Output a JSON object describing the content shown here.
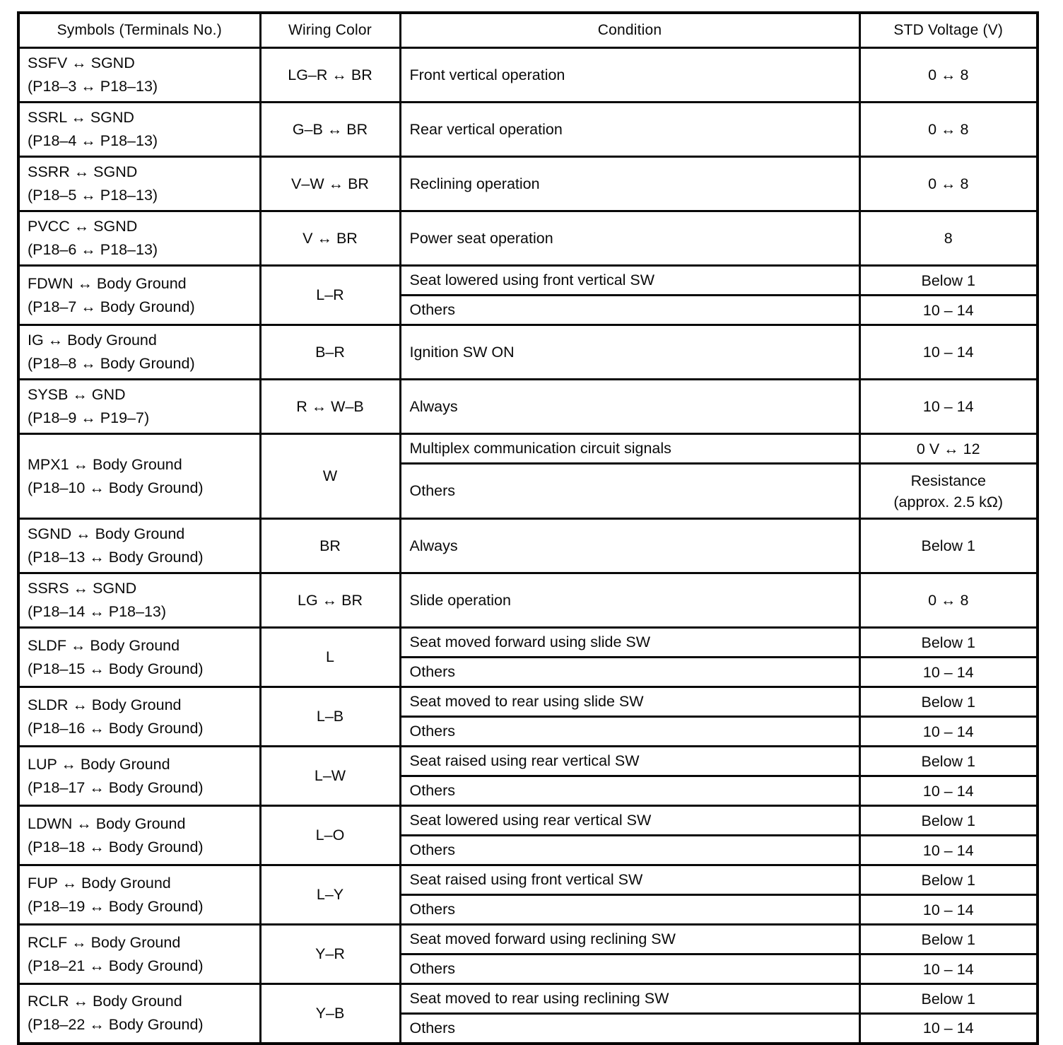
{
  "table": {
    "headers": {
      "symbols": "Symbols (Terminals No.)",
      "wiring_color": "Wiring Color",
      "condition": "Condition",
      "std_voltage": "STD Voltage (V)"
    },
    "rows": [
      {
        "symbol": "SSFV ↔ SGND",
        "terminals": "(P18–3 ↔ P18–13)",
        "wiring_color": "LG–R ↔ BR",
        "conditions": [
          {
            "condition": "Front vertical operation",
            "voltage": "0 ↔ 8"
          }
        ]
      },
      {
        "symbol": "SSRL ↔ SGND",
        "terminals": "(P18–4 ↔ P18–13)",
        "wiring_color": "G–B ↔ BR",
        "conditions": [
          {
            "condition": "Rear vertical operation",
            "voltage": "0 ↔ 8"
          }
        ]
      },
      {
        "symbol": "SSRR ↔ SGND",
        "terminals": "(P18–5 ↔ P18–13)",
        "wiring_color": "V–W ↔ BR",
        "conditions": [
          {
            "condition": "Reclining operation",
            "voltage": "0 ↔ 8"
          }
        ]
      },
      {
        "symbol": "PVCC ↔ SGND",
        "terminals": "(P18–6 ↔ P18–13)",
        "wiring_color": "V ↔ BR",
        "conditions": [
          {
            "condition": "Power seat operation",
            "voltage": "8"
          }
        ]
      },
      {
        "symbol": "FDWN ↔ Body Ground",
        "terminals": "(P18–7 ↔ Body Ground)",
        "wiring_color": "L–R",
        "conditions": [
          {
            "condition": "Seat lowered using front vertical SW",
            "voltage": "Below 1"
          },
          {
            "condition": "Others",
            "voltage": "10 – 14"
          }
        ]
      },
      {
        "symbol": "IG ↔ Body Ground",
        "terminals": "(P18–8 ↔ Body Ground)",
        "wiring_color": "B–R",
        "conditions": [
          {
            "condition": "Ignition SW ON",
            "voltage": "10 – 14"
          }
        ]
      },
      {
        "symbol": "SYSB ↔ GND",
        "terminals": "(P18–9 ↔ P19–7)",
        "wiring_color": "R ↔ W–B",
        "conditions": [
          {
            "condition": "Always",
            "voltage": "10 – 14"
          }
        ]
      },
      {
        "symbol": "MPX1 ↔ Body Ground",
        "terminals": "(P18–10 ↔ Body Ground)",
        "wiring_color": "W",
        "conditions": [
          {
            "condition": "Multiplex communication circuit signals",
            "voltage": "0 V ↔ 12"
          },
          {
            "condition": "Others",
            "voltage": "Resistance\n(approx. 2.5 kΩ)",
            "tall": true
          }
        ]
      },
      {
        "symbol": "SGND ↔ Body Ground",
        "terminals": "(P18–13 ↔ Body Ground)",
        "wiring_color": "BR",
        "conditions": [
          {
            "condition": "Always",
            "voltage": "Below 1"
          }
        ]
      },
      {
        "symbol": "SSRS ↔ SGND",
        "terminals": "(P18–14 ↔ P18–13)",
        "wiring_color": "LG ↔ BR",
        "conditions": [
          {
            "condition": "Slide operation",
            "voltage": "0 ↔ 8"
          }
        ]
      },
      {
        "symbol": "SLDF ↔ Body Ground",
        "terminals": "(P18–15 ↔ Body Ground)",
        "wiring_color": "L",
        "conditions": [
          {
            "condition": "Seat moved forward using slide SW",
            "voltage": "Below 1"
          },
          {
            "condition": "Others",
            "voltage": "10 – 14"
          }
        ]
      },
      {
        "symbol": "SLDR ↔ Body Ground",
        "terminals": "(P18–16 ↔ Body Ground)",
        "wiring_color": "L–B",
        "conditions": [
          {
            "condition": "Seat moved to rear using slide SW",
            "voltage": "Below 1"
          },
          {
            "condition": "Others",
            "voltage": "10 – 14"
          }
        ]
      },
      {
        "symbol": "LUP ↔ Body Ground",
        "terminals": "(P18–17 ↔ Body Ground)",
        "wiring_color": "L–W",
        "conditions": [
          {
            "condition": "Seat raised using rear vertical SW",
            "voltage": "Below 1"
          },
          {
            "condition": "Others",
            "voltage": "10 – 14"
          }
        ]
      },
      {
        "symbol": "LDWN ↔ Body Ground",
        "terminals": "(P18–18 ↔ Body Ground)",
        "wiring_color": "L–O",
        "conditions": [
          {
            "condition": "Seat lowered using rear vertical SW",
            "voltage": "Below 1"
          },
          {
            "condition": "Others",
            "voltage": "10 – 14"
          }
        ]
      },
      {
        "symbol": "FUP ↔ Body Ground",
        "terminals": "(P18–19 ↔ Body Ground)",
        "wiring_color": "L–Y",
        "conditions": [
          {
            "condition": "Seat raised using front vertical SW",
            "voltage": "Below 1"
          },
          {
            "condition": "Others",
            "voltage": "10 – 14"
          }
        ]
      },
      {
        "symbol": "RCLF ↔ Body Ground",
        "terminals": "(P18–21 ↔ Body Ground)",
        "wiring_color": "Y–R",
        "conditions": [
          {
            "condition": "Seat moved forward using reclining SW",
            "voltage": "Below 1"
          },
          {
            "condition": "Others",
            "voltage": "10 – 14"
          }
        ]
      },
      {
        "symbol": "RCLR ↔ Body Ground",
        "terminals": "(P18–22 ↔ Body Ground)",
        "wiring_color": "Y–B",
        "conditions": [
          {
            "condition": "Seat moved to rear using reclining SW",
            "voltage": "Below 1"
          },
          {
            "condition": "Others",
            "voltage": "10 – 14"
          }
        ]
      }
    ]
  }
}
